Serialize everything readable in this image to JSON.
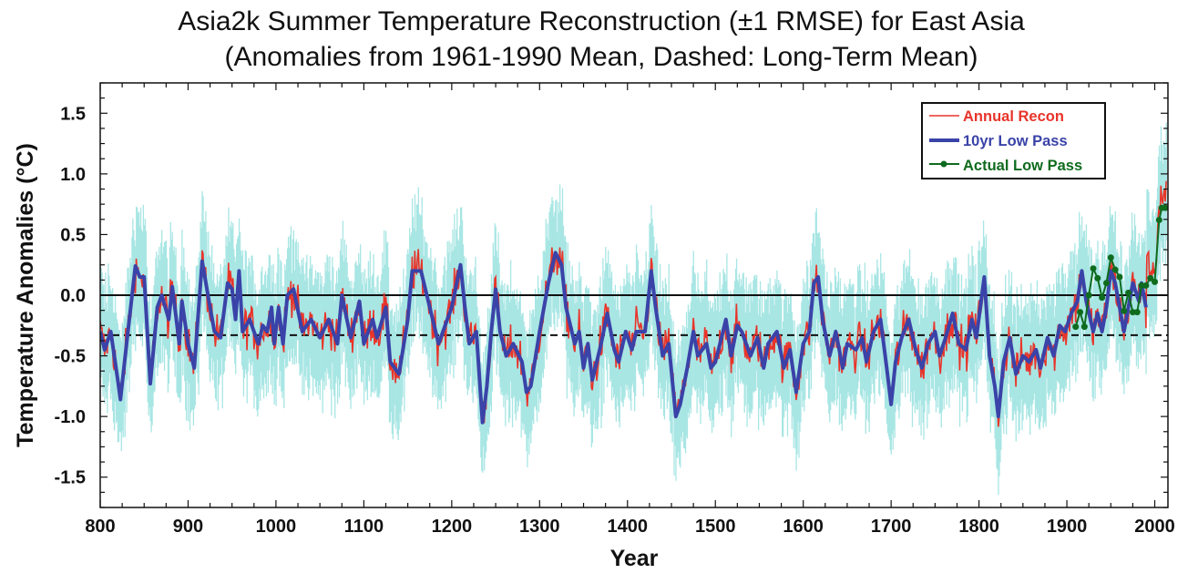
{
  "chart_data": {
    "type": "line",
    "title": "Asia2k Summer Temperature Reconstruction (±1 RMSE) for East Asia",
    "subtitle": "(Anomalies from 1961-1990 Mean, Dashed: Long-Term Mean)",
    "xlabel": "Year",
    "ylabel": "Temperature Anomalies (°C)",
    "xlim": [
      800,
      2015
    ],
    "ylim": [
      -1.75,
      1.75
    ],
    "xticks": [
      800,
      900,
      1000,
      1100,
      1200,
      1300,
      1400,
      1500,
      1600,
      1700,
      1800,
      1900,
      2000
    ],
    "yticks": [
      -1.5,
      -1.0,
      -0.5,
      0.0,
      0.5,
      1.0,
      1.5
    ],
    "ytick_labels": [
      "-1.5",
      "-1.0",
      "-0.5",
      "0.0",
      "0.5",
      "1.0",
      "1.5"
    ],
    "reference_lines": {
      "zero": 0.0,
      "long_term_mean": -0.33
    },
    "rmse": 0.45,
    "legend": {
      "placement": "top-right",
      "entries": [
        "Annual Recon",
        "10yr Low Pass",
        "Actual Low Pass"
      ]
    },
    "colors": {
      "annual": "#e8342a",
      "lowpass": "#3a43a8",
      "actual": "#0f6b1e",
      "band": "#a8e6e4"
    },
    "series": [
      {
        "name": "10yr Low Pass",
        "x": [
          800,
          805,
          812,
          820,
          823,
          830,
          840,
          845,
          850,
          857,
          865,
          870,
          878,
          882,
          890,
          893,
          900,
          907,
          916,
          925,
          930,
          937,
          945,
          950,
          954,
          958,
          962,
          970,
          980,
          985,
          990,
          995,
          998,
          1003,
          1008,
          1013,
          1020,
          1030,
          1040,
          1050,
          1060,
          1070,
          1075,
          1085,
          1095,
          1100,
          1110,
          1115,
          1125,
          1130,
          1140,
          1150,
          1155,
          1165,
          1175,
          1185,
          1195,
          1200,
          1210,
          1215,
          1220,
          1228,
          1235,
          1240,
          1245,
          1250,
          1255,
          1262,
          1270,
          1280,
          1285,
          1290,
          1300,
          1310,
          1318,
          1325,
          1330,
          1340,
          1345,
          1350,
          1355,
          1360,
          1370,
          1377,
          1385,
          1390,
          1398,
          1405,
          1410,
          1420,
          1427,
          1432,
          1440,
          1447,
          1455,
          1460,
          1468,
          1475,
          1480,
          1490,
          1495,
          1500,
          1507,
          1512,
          1518,
          1525,
          1530,
          1540,
          1548,
          1555,
          1560,
          1570,
          1578,
          1585,
          1592,
          1600,
          1607,
          1612,
          1617,
          1622,
          1630,
          1637,
          1645,
          1650,
          1660,
          1667,
          1672,
          1680,
          1688,
          1695,
          1700,
          1705,
          1712,
          1720,
          1728,
          1735,
          1742,
          1750,
          1755,
          1762,
          1770,
          1777,
          1785,
          1792,
          1797,
          1806,
          1812,
          1818,
          1822,
          1828,
          1835,
          1842,
          1850,
          1857,
          1865,
          1870,
          1878,
          1885,
          1892,
          1898,
          1905,
          1912,
          1917,
          1922,
          1930,
          1935,
          1940,
          1945,
          1950,
          1955,
          1960,
          1965,
          1970,
          1975,
          1982,
          1985,
          1990
        ],
        "values": [
          -0.3,
          -0.45,
          -0.3,
          -0.7,
          -0.86,
          -0.4,
          0.24,
          0.15,
          0.15,
          -0.73,
          -0.1,
          0.0,
          -0.2,
          0.07,
          -0.4,
          -0.05,
          -0.4,
          -0.6,
          0.28,
          -0.1,
          -0.3,
          -0.35,
          0.1,
          0.05,
          -0.2,
          0.2,
          -0.3,
          -0.2,
          -0.4,
          -0.25,
          -0.3,
          -0.1,
          -0.4,
          -0.1,
          -0.4,
          0.0,
          0.05,
          -0.3,
          -0.2,
          -0.35,
          -0.2,
          -0.4,
          0.0,
          -0.35,
          -0.05,
          -0.4,
          -0.2,
          -0.35,
          -0.1,
          -0.55,
          -0.65,
          -0.2,
          0.2,
          0.2,
          -0.1,
          -0.4,
          -0.2,
          -0.1,
          0.25,
          -0.1,
          -0.4,
          -0.3,
          -1.05,
          -0.75,
          -0.3,
          0.05,
          -0.3,
          -0.5,
          -0.4,
          -0.55,
          -0.8,
          -0.75,
          -0.3,
          0.1,
          0.35,
          0.25,
          -0.1,
          -0.4,
          -0.3,
          -0.6,
          -0.4,
          -0.7,
          -0.4,
          -0.15,
          -0.45,
          -0.55,
          -0.3,
          -0.45,
          -0.3,
          -0.3,
          0.2,
          -0.1,
          -0.5,
          -0.4,
          -1.0,
          -0.9,
          -0.6,
          -0.3,
          -0.5,
          -0.4,
          -0.6,
          -0.55,
          -0.35,
          -0.2,
          -0.5,
          -0.25,
          -0.3,
          -0.5,
          -0.35,
          -0.6,
          -0.4,
          -0.3,
          -0.6,
          -0.45,
          -0.8,
          -0.4,
          -0.3,
          0.1,
          0.15,
          -0.2,
          -0.5,
          -0.3,
          -0.6,
          -0.4,
          -0.45,
          -0.35,
          -0.55,
          -0.3,
          -0.2,
          -0.6,
          -0.9,
          -0.55,
          -0.35,
          -0.2,
          -0.45,
          -0.6,
          -0.4,
          -0.3,
          -0.5,
          -0.35,
          -0.15,
          -0.4,
          -0.45,
          -0.2,
          -0.35,
          0.15,
          -0.5,
          -0.75,
          -1.0,
          -0.55,
          -0.35,
          -0.65,
          -0.5,
          -0.55,
          -0.45,
          -0.6,
          -0.35,
          -0.5,
          -0.25,
          -0.3,
          -0.15,
          -0.05,
          0.2,
          -0.05,
          -0.3,
          -0.15,
          -0.3,
          -0.1,
          0.2,
          0.1,
          -0.1,
          -0.3,
          -0.1,
          0.1,
          -0.05,
          0.1,
          -0.1
        ]
      },
      {
        "name": "Actual Low Pass",
        "x": [
          1910,
          1915,
          1920,
          1925,
          1930,
          1935,
          1940,
          1945,
          1950,
          1955,
          1960,
          1965,
          1970,
          1975,
          1980,
          1985,
          1990,
          1995,
          2000,
          2005,
          2008,
          2012
        ],
        "values": [
          -0.26,
          -0.14,
          -0.26,
          0.0,
          0.22,
          0.14,
          -0.02,
          0.1,
          0.31,
          0.21,
          0.15,
          -0.13,
          0.02,
          -0.14,
          -0.14,
          0.08,
          0.08,
          0.14,
          0.11,
          0.62,
          0.72,
          0.72
        ]
      }
    ]
  }
}
